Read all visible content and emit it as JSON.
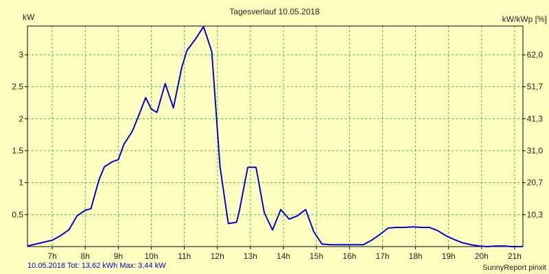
{
  "chart_data": {
    "type": "line",
    "title": "Tagesverlauf 10.05.2018",
    "ylabel_left": "kW",
    "ylabel_right": "kW/kWp [%]",
    "xlim": [
      6.25,
      21.25
    ],
    "ylim": [
      0,
      3.45
    ],
    "x_ticks": [
      7,
      8,
      9,
      10,
      11,
      12,
      13,
      14,
      15,
      16,
      17,
      18,
      19,
      20,
      21
    ],
    "x_tick_labels": [
      "7h",
      "8h",
      "9h",
      "10h",
      "11h",
      "12h",
      "13h",
      "14h",
      "15h",
      "16h",
      "17h",
      "18h",
      "19h",
      "20h",
      "21h"
    ],
    "y_ticks_left": [
      0.5,
      1,
      1.5,
      2,
      2.5,
      3
    ],
    "y_tick_labels_left": [
      "0.5",
      "1",
      "1.5",
      "2",
      "2.5",
      "3"
    ],
    "y_ticks_right_kw": [
      0.5,
      1,
      1.5,
      2,
      2.5,
      3
    ],
    "y_tick_labels_right": [
      "10,3",
      "20,7",
      "31,0",
      "41,3",
      "51,7",
      "62,0"
    ],
    "grid": true,
    "colors": {
      "background": "#ffffc0",
      "grid": "#33cc33",
      "line": "#0000dd"
    },
    "series": [
      {
        "x": [
          6.25,
          6.5,
          6.75,
          7.0,
          7.25,
          7.5,
          7.75,
          8.0,
          8.17,
          8.42,
          8.58,
          8.83,
          9.0,
          9.17,
          9.42,
          9.58,
          9.83,
          10.0,
          10.17,
          10.42,
          10.67,
          10.92,
          11.08,
          11.33,
          11.58,
          11.83,
          12.08,
          12.33,
          12.58,
          12.67,
          12.92,
          13.17,
          13.42,
          13.67,
          13.92,
          14.17,
          14.42,
          14.67,
          14.92,
          15.17,
          15.42,
          15.67,
          15.92,
          16.17,
          16.42,
          16.67,
          16.92,
          17.17,
          17.42,
          17.67,
          17.92,
          18.17,
          18.42,
          18.67,
          18.92,
          19.17,
          19.42,
          19.67,
          19.92,
          20.17,
          20.42,
          20.67,
          20.92,
          21.17,
          21.25
        ],
        "y": [
          0.01,
          0.04,
          0.07,
          0.1,
          0.17,
          0.26,
          0.48,
          0.57,
          0.59,
          1.05,
          1.25,
          1.33,
          1.36,
          1.6,
          1.8,
          2.0,
          2.33,
          2.15,
          2.1,
          2.55,
          2.17,
          2.8,
          3.07,
          3.24,
          3.44,
          3.05,
          1.25,
          0.36,
          0.38,
          0.57,
          1.24,
          1.24,
          0.53,
          0.26,
          0.58,
          0.43,
          0.48,
          0.58,
          0.23,
          0.04,
          0.03,
          0.03,
          0.03,
          0.03,
          0.03,
          0.1,
          0.19,
          0.29,
          0.3,
          0.3,
          0.31,
          0.3,
          0.3,
          0.25,
          0.17,
          0.11,
          0.06,
          0.03,
          0.01,
          0.0,
          0.01,
          0.01,
          0.0,
          0.0,
          0.0
        ]
      }
    ]
  },
  "footer": {
    "left": "10.05.2018 Tot: 13,62 kWh Max: 3,44 kW",
    "right": "SunnyReport pinxit"
  }
}
